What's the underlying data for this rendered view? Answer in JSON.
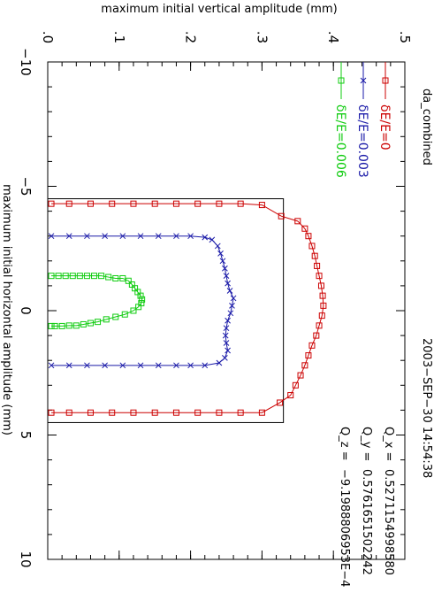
{
  "chart_data": {
    "type": "line",
    "title": "da_combined",
    "xlabel": "maximum initial horizontal amplitude (mm)",
    "ylabel": "maximum initial vertical amplitude (mm)",
    "xlim": [
      -10,
      10
    ],
    "ylim": [
      0,
      0.5
    ],
    "x_ticks": [
      "−10",
      "−5",
      "0",
      "5",
      "10"
    ],
    "y_ticks": [
      ".0",
      ".1",
      ".2",
      ".3",
      ".4",
      ".5"
    ],
    "date": "2003−SEP−30  14:54:38",
    "tunes": [
      {
        "label": "Q_x  =",
        "value": "0.5271154998580"
      },
      {
        "label": "Q_y  =",
        "value": "0.5761651502242"
      },
      {
        "label": "Q_z  =",
        "value": "−9.1988806953E−4"
      }
    ],
    "box": {
      "x": [
        -4.5,
        4.5
      ],
      "y": [
        0,
        0.33
      ]
    },
    "series": [
      {
        "name": "δE/E=0",
        "color": "#cc0000",
        "marker": "square",
        "points": [
          [
            -4.3,
            0.005
          ],
          [
            -4.3,
            0.03
          ],
          [
            -4.3,
            0.06
          ],
          [
            -4.3,
            0.09
          ],
          [
            -4.3,
            0.12
          ],
          [
            -4.3,
            0.15
          ],
          [
            -4.3,
            0.18
          ],
          [
            -4.3,
            0.21
          ],
          [
            -4.3,
            0.24
          ],
          [
            -4.3,
            0.27
          ],
          [
            -4.25,
            0.3
          ],
          [
            -3.8,
            0.327
          ],
          [
            -3.6,
            0.35
          ],
          [
            -3.3,
            0.36
          ],
          [
            -3.0,
            0.365
          ],
          [
            -2.6,
            0.37
          ],
          [
            -2.2,
            0.374
          ],
          [
            -1.8,
            0.377
          ],
          [
            -1.4,
            0.38
          ],
          [
            -1.0,
            0.383
          ],
          [
            -0.6,
            0.385
          ],
          [
            -0.2,
            0.386
          ],
          [
            0.2,
            0.384
          ],
          [
            0.6,
            0.38
          ],
          [
            1.0,
            0.376
          ],
          [
            1.4,
            0.37
          ],
          [
            1.8,
            0.365
          ],
          [
            2.2,
            0.36
          ],
          [
            2.6,
            0.354
          ],
          [
            3.0,
            0.347
          ],
          [
            3.4,
            0.34
          ],
          [
            3.7,
            0.325
          ],
          [
            4.1,
            0.3
          ],
          [
            4.1,
            0.27
          ],
          [
            4.1,
            0.24
          ],
          [
            4.1,
            0.21
          ],
          [
            4.1,
            0.18
          ],
          [
            4.1,
            0.15
          ],
          [
            4.1,
            0.12
          ],
          [
            4.1,
            0.09
          ],
          [
            4.1,
            0.06
          ],
          [
            4.1,
            0.03
          ],
          [
            4.1,
            0.005
          ]
        ]
      },
      {
        "name": "δE/E=0.003",
        "color": "#1a1aa8",
        "marker": "cross",
        "points": [
          [
            -3.0,
            0.005
          ],
          [
            -3.0,
            0.03
          ],
          [
            -3.0,
            0.055
          ],
          [
            -3.0,
            0.08
          ],
          [
            -3.0,
            0.105
          ],
          [
            -3.0,
            0.13
          ],
          [
            -3.0,
            0.155
          ],
          [
            -3.0,
            0.18
          ],
          [
            -3.0,
            0.2
          ],
          [
            -2.95,
            0.22
          ],
          [
            -2.85,
            0.23
          ],
          [
            -2.6,
            0.238
          ],
          [
            -2.3,
            0.242
          ],
          [
            -2.0,
            0.245
          ],
          [
            -1.7,
            0.248
          ],
          [
            -1.4,
            0.25
          ],
          [
            -1.1,
            0.252
          ],
          [
            -0.8,
            0.255
          ],
          [
            -0.5,
            0.26
          ],
          [
            -0.2,
            0.258
          ],
          [
            0.1,
            0.256
          ],
          [
            0.4,
            0.252
          ],
          [
            0.7,
            0.25
          ],
          [
            1.0,
            0.249
          ],
          [
            1.3,
            0.25
          ],
          [
            1.6,
            0.252
          ],
          [
            1.9,
            0.248
          ],
          [
            2.1,
            0.24
          ],
          [
            2.2,
            0.22
          ],
          [
            2.2,
            0.2
          ],
          [
            2.2,
            0.18
          ],
          [
            2.2,
            0.155
          ],
          [
            2.2,
            0.13
          ],
          [
            2.2,
            0.105
          ],
          [
            2.2,
            0.08
          ],
          [
            2.2,
            0.055
          ],
          [
            2.2,
            0.03
          ],
          [
            2.2,
            0.005
          ]
        ]
      },
      {
        "name": "δE/E=0.006",
        "color": "#11cc11",
        "marker": "square",
        "points": [
          [
            -1.4,
            0.005
          ],
          [
            -1.4,
            0.015
          ],
          [
            -1.4,
            0.025
          ],
          [
            -1.4,
            0.035
          ],
          [
            -1.4,
            0.045
          ],
          [
            -1.4,
            0.055
          ],
          [
            -1.4,
            0.065
          ],
          [
            -1.4,
            0.075
          ],
          [
            -1.35,
            0.085
          ],
          [
            -1.3,
            0.095
          ],
          [
            -1.3,
            0.105
          ],
          [
            -1.2,
            0.113
          ],
          [
            -1.05,
            0.118
          ],
          [
            -0.9,
            0.122
          ],
          [
            -0.75,
            0.126
          ],
          [
            -0.6,
            0.13
          ],
          [
            -0.45,
            0.132
          ],
          [
            -0.3,
            0.131
          ],
          [
            -0.15,
            0.127
          ],
          [
            0.0,
            0.12
          ],
          [
            0.15,
            0.108
          ],
          [
            0.25,
            0.095
          ],
          [
            0.35,
            0.082
          ],
          [
            0.45,
            0.07
          ],
          [
            0.5,
            0.06
          ],
          [
            0.55,
            0.05
          ],
          [
            0.6,
            0.04
          ],
          [
            0.6,
            0.03
          ],
          [
            0.62,
            0.02
          ],
          [
            0.62,
            0.01
          ],
          [
            0.62,
            0.005
          ]
        ]
      }
    ]
  }
}
